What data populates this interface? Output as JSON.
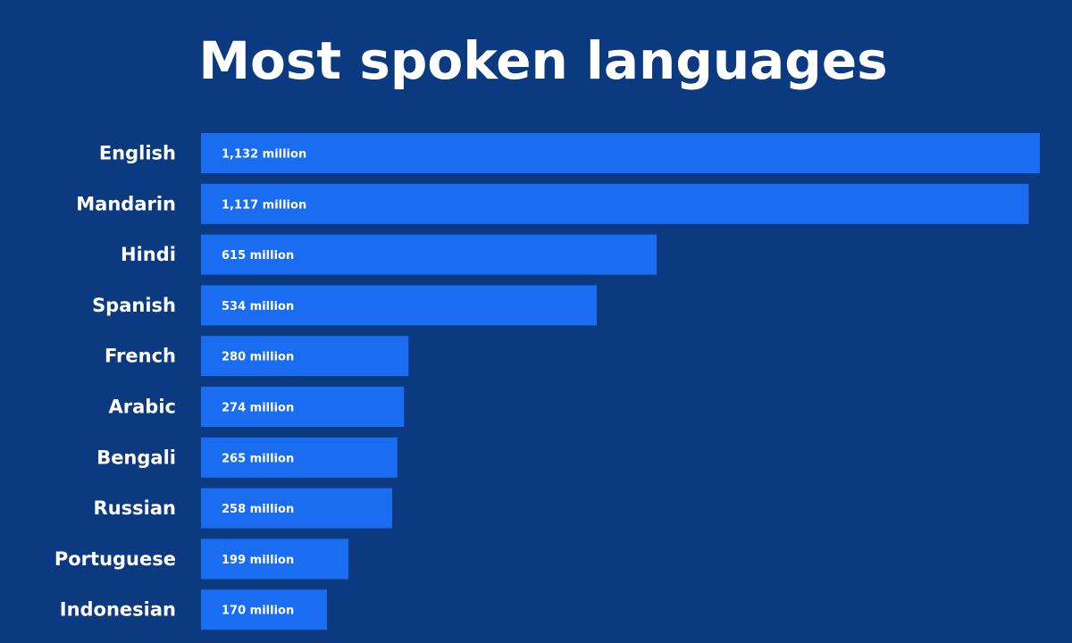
{
  "chart_data": {
    "type": "bar",
    "orientation": "horizontal",
    "title": "Most spoken languages",
    "categories": [
      "English",
      "Mandarin",
      "Hindi",
      "Spanish",
      "French",
      "Arabic",
      "Bengali",
      "Russian",
      "Portuguese",
      "Indonesian"
    ],
    "values": [
      1132,
      1117,
      615,
      534,
      280,
      274,
      265,
      258,
      199,
      170
    ],
    "value_labels": [
      "1,132 million",
      "1,117 million",
      "615 million",
      "534 million",
      "280 million",
      "274 million",
      "265 million",
      "258 million",
      "199 million",
      "170 million"
    ],
    "xlim": [
      0,
      1132
    ],
    "grid": false,
    "legend": "none",
    "colors": {
      "background": "#0b3a80",
      "bar": "#1a6cf0",
      "text": "#ffffff"
    }
  }
}
